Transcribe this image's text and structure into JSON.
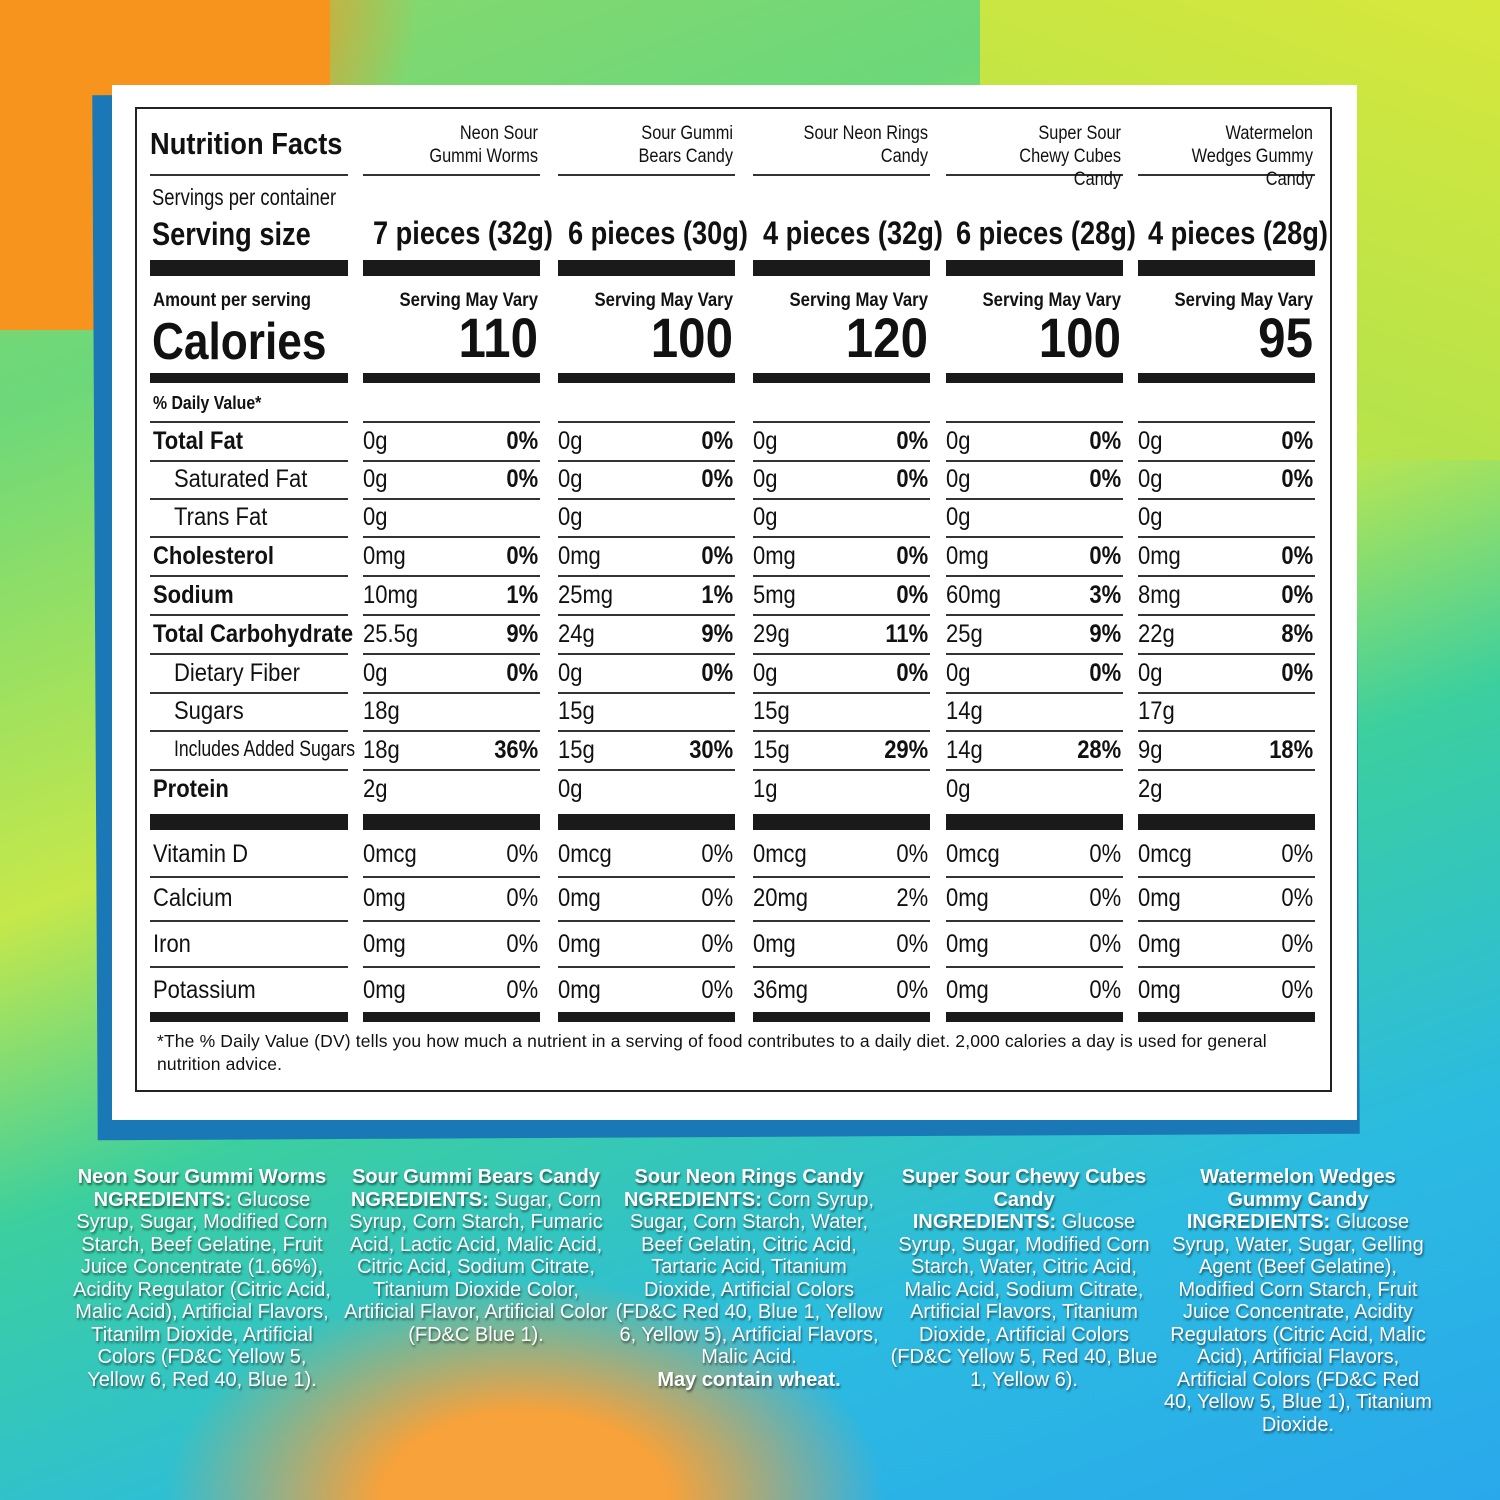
{
  "label": {
    "title": "Nutrition Facts",
    "servings_per_container": "Servings per container",
    "serving_size": "Serving size",
    "amount_per_serving": "Amount per serving",
    "calories": "Calories",
    "daily_value": "% Daily Value*",
    "footnote": "*The % Daily Value (DV) tells you how much a nutrient in a serving of food contributes to a daily diet. 2,000 calories a day is used for general nutrition advice."
  },
  "products": [
    {
      "name": "Neon Sour Gummi Worms",
      "serving": "7 pieces (32g)",
      "servings_note": "Serving May Vary",
      "calories": "110"
    },
    {
      "name": "Sour Gummi Bears Candy",
      "serving": "6 pieces (30g)",
      "servings_note": "Serving May Vary",
      "calories": "100"
    },
    {
      "name": "Sour Neon Rings Candy",
      "serving": "4 pieces (32g)",
      "servings_note": "Serving May Vary",
      "calories": "120"
    },
    {
      "name": "Super Sour Chewy Cubes Candy",
      "serving": "6 pieces (28g)",
      "servings_note": "Serving May Vary",
      "calories": "100"
    },
    {
      "name": "Watermelon Wedges Gummy Candy",
      "serving": "4 pieces (28g)",
      "servings_note": "Serving May Vary",
      "calories": "95"
    }
  ],
  "nutrients": [
    {
      "label": "Total Fat",
      "bold": true,
      "indent": false,
      "values": [
        [
          "0g",
          "0%"
        ],
        [
          "0g",
          "0%"
        ],
        [
          "0g",
          "0%"
        ],
        [
          "0g",
          "0%"
        ],
        [
          "0g",
          "0%"
        ]
      ]
    },
    {
      "label": "Saturated Fat",
      "bold": false,
      "indent": true,
      "values": [
        [
          "0g",
          "0%"
        ],
        [
          "0g",
          "0%"
        ],
        [
          "0g",
          "0%"
        ],
        [
          "0g",
          "0%"
        ],
        [
          "0g",
          "0%"
        ]
      ]
    },
    {
      "label": "Trans Fat",
      "bold": false,
      "indent": true,
      "values": [
        [
          "0g",
          ""
        ],
        [
          "0g",
          ""
        ],
        [
          "0g",
          ""
        ],
        [
          "0g",
          ""
        ],
        [
          "0g",
          ""
        ]
      ]
    },
    {
      "label": "Cholesterol",
      "bold": true,
      "indent": false,
      "values": [
        [
          "0mg",
          "0%"
        ],
        [
          "0mg",
          "0%"
        ],
        [
          "0mg",
          "0%"
        ],
        [
          "0mg",
          "0%"
        ],
        [
          "0mg",
          "0%"
        ]
      ]
    },
    {
      "label": "Sodium",
      "bold": true,
      "indent": false,
      "values": [
        [
          "10mg",
          "1%"
        ],
        [
          "25mg",
          "1%"
        ],
        [
          "5mg",
          "0%"
        ],
        [
          "60mg",
          "3%"
        ],
        [
          "8mg",
          "0%"
        ]
      ]
    },
    {
      "label": "Total Carbohydrate",
      "bold": true,
      "indent": false,
      "values": [
        [
          "25.5g",
          "9%"
        ],
        [
          "24g",
          "9%"
        ],
        [
          "29g",
          "11%"
        ],
        [
          "25g",
          "9%"
        ],
        [
          "22g",
          "8%"
        ]
      ]
    },
    {
      "label": "Dietary Fiber",
      "bold": false,
      "indent": true,
      "values": [
        [
          "0g",
          "0%"
        ],
        [
          "0g",
          "0%"
        ],
        [
          "0g",
          "0%"
        ],
        [
          "0g",
          "0%"
        ],
        [
          "0g",
          "0%"
        ]
      ]
    },
    {
      "label": "Sugars",
      "bold": false,
      "indent": true,
      "values": [
        [
          "18g",
          ""
        ],
        [
          "15g",
          ""
        ],
        [
          "15g",
          ""
        ],
        [
          "14g",
          ""
        ],
        [
          "17g",
          ""
        ]
      ]
    },
    {
      "label": "Includes Added Sugars",
      "bold": false,
      "indent": true,
      "small": true,
      "values": [
        [
          "18g",
          "36%"
        ],
        [
          "15g",
          "30%"
        ],
        [
          "15g",
          "29%"
        ],
        [
          "14g",
          "28%"
        ],
        [
          "9g",
          "18%"
        ]
      ]
    },
    {
      "label": "Protein",
      "bold": true,
      "indent": false,
      "values": [
        [
          "2g",
          ""
        ],
        [
          "0g",
          ""
        ],
        [
          "1g",
          ""
        ],
        [
          "0g",
          ""
        ],
        [
          "2g",
          ""
        ]
      ]
    }
  ],
  "vitamins": [
    {
      "label": "Vitamin D",
      "values": [
        [
          "0mcg",
          "0%"
        ],
        [
          "0mcg",
          "0%"
        ],
        [
          "0mcg",
          "0%"
        ],
        [
          "0mcg",
          "0%"
        ],
        [
          "0mcg",
          "0%"
        ]
      ]
    },
    {
      "label": "Calcium",
      "values": [
        [
          "0mg",
          "0%"
        ],
        [
          "0mg",
          "0%"
        ],
        [
          "20mg",
          "2%"
        ],
        [
          "0mg",
          "0%"
        ],
        [
          "0mg",
          "0%"
        ]
      ]
    },
    {
      "label": "Iron",
      "values": [
        [
          "0mg",
          "0%"
        ],
        [
          "0mg",
          "0%"
        ],
        [
          "0mg",
          "0%"
        ],
        [
          "0mg",
          "0%"
        ],
        [
          "0mg",
          "0%"
        ]
      ]
    },
    {
      "label": "Potassium",
      "values": [
        [
          "0mg",
          "0%"
        ],
        [
          "0mg",
          "0%"
        ],
        [
          "36mg",
          "0%"
        ],
        [
          "0mg",
          "0%"
        ],
        [
          "0mg",
          "0%"
        ]
      ]
    }
  ],
  "ingredients": [
    {
      "name": "Neon Sour Gummi Worms",
      "heading": "NGREDIENTS:",
      "text": "Glucose Syrup, Sugar, Modified Corn Starch, Beef Gelatine, Fruit Juice Concentrate (1.66%), Acidity Regulator (Citric Acid, Malic Acid), Artificial Flavors, Titanilm Dioxide, Artificial Colors (FD&C Yellow 5, Yellow 6, Red 40,  Blue 1).",
      "note": ""
    },
    {
      "name": "Sour Gummi Bears Candy",
      "heading": "NGREDIENTS:",
      "text": "Sugar, Corn Syrup, Corn Starch, Fumaric Acid, Lactic Acid, Malic Acid, Citric Acid, Sodium Citrate, Titanium Dioxide Color, Artificial Flavor, Artificial Color (FD&C Blue 1).",
      "note": ""
    },
    {
      "name": "Sour Neon Rings Candy",
      "heading": "NGREDIENTS:",
      "text": "Corn Syrup, Sugar, Corn Starch, Water, Beef Gelatin, Citric Acid, Tartaric Acid, Titanium Dioxide, Artificial Colors (FD&C Red 40, Blue 1, Yellow 6, Yellow 5), Artificial Flavors, Malic Acid.",
      "note": "May contain wheat."
    },
    {
      "name": "Super Sour Chewy Cubes Candy",
      "heading": "INGREDIENTS:",
      "text": "Glucose Syrup, Sugar, Modified Corn Starch, Water, Citric Acid, Malic Acid, Sodium Citrate, Artificial Flavors, Titanium Dioxide, Artificial Colors (FD&C Yellow 5, Red 40, Blue 1, Yellow 6).",
      "note": ""
    },
    {
      "name": "Watermelon Wedges Gummy Candy",
      "heading": "INGREDIENTS:",
      "text": "Glucose Syrup, Water, Sugar, Gelling Agent (Beef Gelatine), Modified Corn Starch, Fruit Juice Concentrate, Acidity Regulators (Citric Acid, Malic Acid), Artificial Flavors, Artificial Colors (FD&C Red 40, Yellow 5, Blue 1), Titanium Dioxide.",
      "note": ""
    }
  ]
}
